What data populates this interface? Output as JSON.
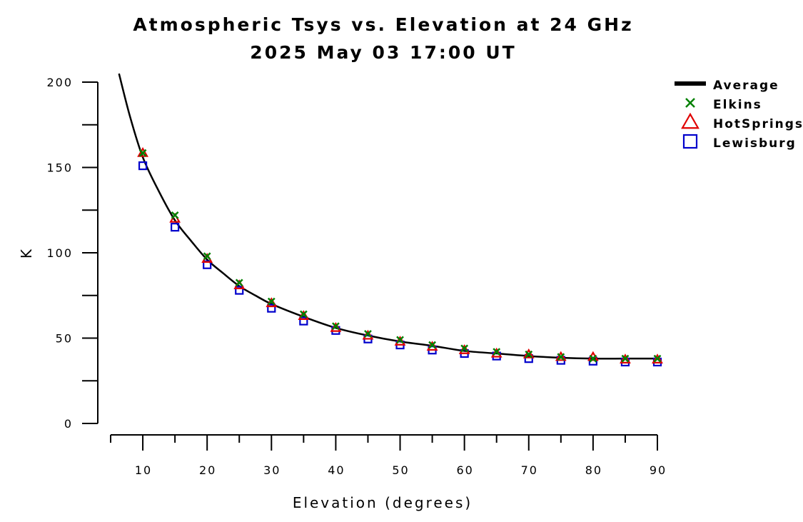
{
  "chart_data": {
    "type": "line",
    "title": "Atmospheric Tsys vs. Elevation at 24 GHz",
    "subtitle": "2025 May 03 17:00 UT",
    "xlabel": "Elevation (degrees)",
    "ylabel": "K",
    "xlim": [
      5,
      90
    ],
    "ylim": [
      0,
      200
    ],
    "x_ticks": [
      10,
      20,
      30,
      40,
      50,
      60,
      70,
      80,
      90
    ],
    "y_ticks": [
      0,
      50,
      100,
      150,
      200
    ],
    "grid": false,
    "legend_position": "top-right",
    "average": {
      "name": "Average",
      "color": "#000000",
      "x": [
        6.3,
        8,
        10,
        12.5,
        15,
        17.5,
        20,
        22.5,
        25,
        27.5,
        30,
        35,
        40,
        45,
        50,
        55,
        60,
        65,
        70,
        75,
        80,
        85,
        90
      ],
      "y": [
        205,
        180,
        156,
        136,
        119,
        107,
        96,
        88,
        80.5,
        75,
        70,
        62.5,
        56,
        51.5,
        48,
        45.5,
        42.5,
        41,
        39.5,
        38.5,
        38,
        38,
        38
      ]
    },
    "x": [
      10,
      15,
      20,
      25,
      30,
      35,
      40,
      45,
      50,
      55,
      60,
      65,
      70,
      75,
      80,
      85,
      90
    ],
    "series": [
      {
        "name": "Elkins",
        "marker": "x",
        "color": "#008000",
        "values": [
          158.5,
          122,
          98,
          82.5,
          71.5,
          64,
          57,
          52.5,
          49,
          46,
          44,
          42,
          40.5,
          39,
          38,
          38,
          38
        ]
      },
      {
        "name": "HotSprings",
        "marker": "triangle",
        "color": "#e00000",
        "values": [
          158.5,
          120,
          96.5,
          81,
          70.5,
          63,
          56,
          51.5,
          48,
          45,
          43,
          41,
          40.5,
          39,
          39,
          37.5,
          37.5
        ]
      },
      {
        "name": "Lewisburg",
        "marker": "square",
        "color": "#0000cc",
        "values": [
          151,
          115,
          93,
          78,
          67.5,
          60,
          54.5,
          49.5,
          46,
          43,
          41,
          39.5,
          38,
          37,
          36.5,
          36,
          36
        ]
      }
    ]
  }
}
